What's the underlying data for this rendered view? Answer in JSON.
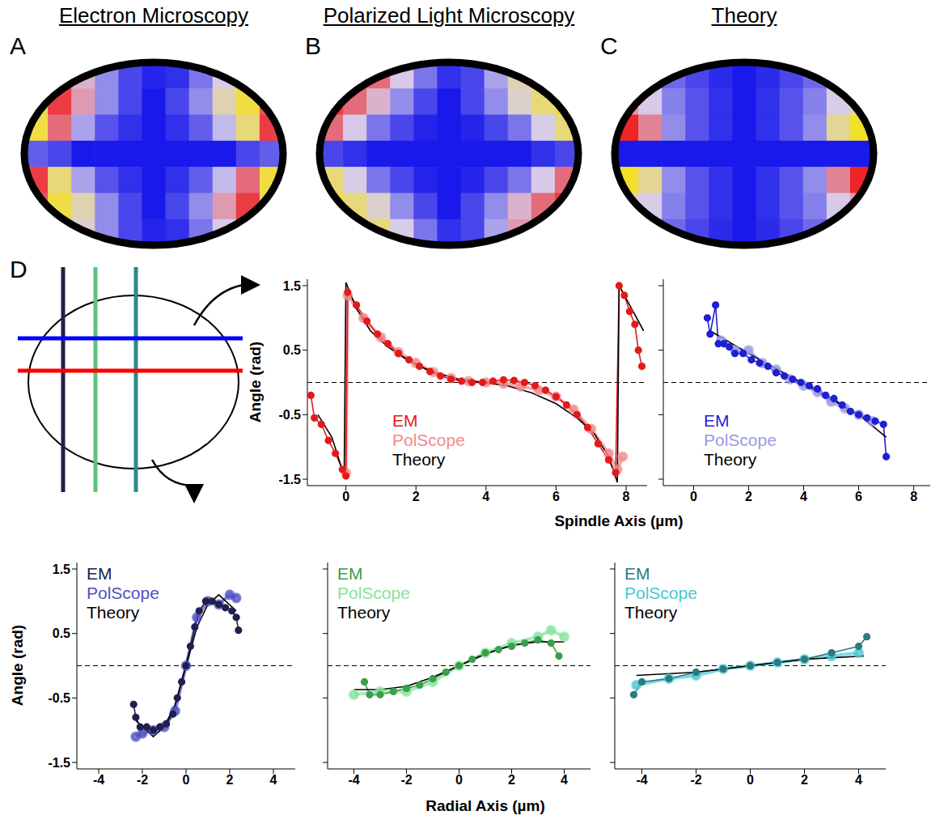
{
  "maps": [
    {
      "letter": "A",
      "title": "Electron Microscopy",
      "values": [
        [
          1.2,
          1.3,
          0.9,
          0.5,
          0.2,
          0.05,
          -0.1,
          -0.4,
          -0.8,
          -1.2,
          -1.3
        ],
        [
          -1.3,
          1.4,
          1.0,
          0.5,
          0.2,
          0,
          -0.2,
          -0.5,
          -1.0,
          -1.4,
          1.3
        ],
        [
          -1.4,
          1.2,
          0.6,
          0.25,
          0.1,
          0,
          -0.1,
          -0.3,
          -0.7,
          -1.2,
          1.4
        ],
        [
          0.3,
          0.2,
          0,
          0,
          0,
          0,
          0,
          0,
          0,
          -0.2,
          -0.3
        ],
        [
          1.4,
          -1.2,
          -0.6,
          -0.25,
          -0.1,
          0,
          0.1,
          0.3,
          0.7,
          1.2,
          -1.4
        ],
        [
          1.3,
          -1.4,
          -1.0,
          -0.5,
          -0.2,
          0,
          0.2,
          0.5,
          1.0,
          1.4,
          -1.3
        ],
        [
          -1.2,
          -1.3,
          -0.9,
          -0.5,
          -0.2,
          -0.05,
          0.1,
          0.4,
          0.8,
          1.2,
          1.3
        ]
      ]
    },
    {
      "letter": "B",
      "title": "Polarized Light Microscopy",
      "values": [
        [
          1.3,
          1.4,
          1.2,
          0.8,
          0.4,
          0.1,
          -0.2,
          -0.6,
          -1.0,
          -1.3,
          -1.4
        ],
        [
          1.4,
          1.2,
          0.9,
          0.5,
          0.2,
          0,
          -0.2,
          -0.5,
          -0.9,
          -1.2,
          -1.4
        ],
        [
          1.2,
          0.8,
          0.4,
          0.2,
          0.05,
          0,
          -0.05,
          -0.2,
          -0.4,
          -0.8,
          -1.2
        ],
        [
          0.2,
          0.1,
          0,
          0,
          0,
          0,
          0,
          0,
          0,
          -0.1,
          -0.2
        ],
        [
          -1.2,
          -0.8,
          -0.4,
          -0.2,
          -0.05,
          0,
          0.05,
          0.2,
          0.4,
          0.8,
          1.2
        ],
        [
          -1.4,
          -1.2,
          -0.9,
          -0.5,
          -0.2,
          0,
          0.2,
          0.5,
          0.9,
          1.2,
          1.4
        ],
        [
          -1.3,
          -1.4,
          -1.2,
          -0.8,
          -0.4,
          -0.1,
          0.2,
          0.6,
          1.0,
          1.3,
          1.4
        ]
      ]
    },
    {
      "letter": "C",
      "title": "Theory",
      "values": [
        [
          0.6,
          0.5,
          0.35,
          0.2,
          0.08,
          0,
          -0.08,
          -0.2,
          -0.35,
          -0.5,
          -0.6
        ],
        [
          1.0,
          0.8,
          0.45,
          0.25,
          0.1,
          0,
          -0.1,
          -0.25,
          -0.45,
          -0.8,
          -1.0
        ],
        [
          1.5,
          1.1,
          0.5,
          0.25,
          0.1,
          0,
          -0.1,
          -0.25,
          -0.5,
          -1.1,
          -1.5
        ],
        [
          0,
          0,
          0,
          0,
          0,
          0,
          0,
          0,
          0,
          0,
          0
        ],
        [
          -1.5,
          -1.1,
          -0.5,
          -0.25,
          -0.1,
          0,
          0.1,
          0.25,
          0.5,
          1.1,
          1.5
        ],
        [
          -1.0,
          -0.8,
          -0.45,
          -0.25,
          -0.1,
          0,
          0.1,
          0.25,
          0.45,
          0.8,
          1.0
        ],
        [
          -0.6,
          -0.5,
          -0.35,
          -0.2,
          -0.08,
          0,
          0.08,
          0.2,
          0.35,
          0.5,
          0.6
        ]
      ]
    }
  ],
  "clim": [
    -1.57,
    1.57
  ],
  "diagram": {
    "letter": "D"
  },
  "chart_data": [
    {
      "type": "line",
      "ylabel": "Angle (rad)",
      "xlabel": "Spindle Axis (µm)",
      "xlim": [
        -1.1,
        8.6
      ],
      "ylim": [
        -1.6,
        1.6
      ],
      "xticks": [
        0,
        2,
        4,
        6,
        8
      ],
      "yticks": [
        -1.5,
        -0.5,
        0.5,
        1.5
      ],
      "reference_y": 0,
      "legend": "lower left",
      "series": [
        {
          "name": "EM",
          "color": "#e31a1c",
          "marker": "circle",
          "line_style": "solid",
          "x": [
            -1,
            -0.9,
            -0.7,
            -0.5,
            -0.3,
            -0.1,
            0,
            0.05,
            0.3,
            0.6,
            0.9,
            1.2,
            1.5,
            1.8,
            2.1,
            2.4,
            2.7,
            3,
            3.3,
            3.6,
            3.9,
            4.2,
            4.5,
            4.8,
            5.1,
            5.4,
            5.7,
            6,
            6.3,
            6.6,
            6.9,
            7.2,
            7.5,
            7.7,
            7.8,
            7.95,
            8.1,
            8.25,
            8.35,
            8.45
          ],
          "values": [
            -0.2,
            -0.55,
            -0.65,
            -0.9,
            -1.1,
            -1.35,
            -1.45,
            1.4,
            1.2,
            0.95,
            0.75,
            0.6,
            0.45,
            0.35,
            0.25,
            0.17,
            0.1,
            0.05,
            0.02,
            0,
            0,
            0.02,
            0.04,
            0.03,
            0,
            -0.05,
            -0.12,
            -0.22,
            -0.35,
            -0.5,
            -0.7,
            -0.95,
            -1.2,
            -1.4,
            1.5,
            1.35,
            1.1,
            0.9,
            0.5,
            0.25
          ]
        },
        {
          "name": "PolScope",
          "color": "#f4898b",
          "marker": "circle",
          "line_style": "solid",
          "x": [
            0,
            0.05,
            0.5,
            1,
            1.5,
            2,
            2.5,
            3,
            3.5,
            4,
            4.5,
            5,
            5.5,
            6,
            6.5,
            7,
            7.5,
            7.75,
            7.9
          ],
          "values": [
            -1.4,
            1.35,
            1.0,
            0.7,
            0.47,
            0.3,
            0.16,
            0.07,
            0.02,
            0,
            -0.02,
            -0.06,
            -0.12,
            -0.22,
            -0.42,
            -0.72,
            -1.1,
            -1.35,
            -1.15
          ]
        },
        {
          "name": "Theory",
          "color": "#000000",
          "marker": "none",
          "line_style": "solid",
          "x": [
            -0.8,
            -0.4,
            -0.05,
            0,
            0.3,
            0.7,
            1.2,
            1.8,
            2.5,
            3.2,
            3.9,
            4.6,
            5.3,
            6,
            6.6,
            7.1,
            7.5,
            7.75,
            7.8,
            8.1,
            8.5
          ],
          "values": [
            -0.5,
            -0.85,
            -1.45,
            1.55,
            1.15,
            0.8,
            0.55,
            0.33,
            0.16,
            0.05,
            0,
            -0.05,
            -0.16,
            -0.33,
            -0.55,
            -0.8,
            -1.15,
            -1.55,
            1.5,
            1.2,
            0.8
          ]
        }
      ]
    },
    {
      "type": "line",
      "xlim": [
        -1.1,
        8.6
      ],
      "ylim": [
        -1.6,
        1.6
      ],
      "xticks": [
        0,
        2,
        4,
        6,
        8
      ],
      "yticks": [
        -1.5,
        -0.5,
        0.5,
        1.5
      ],
      "tick_labels": "x",
      "reference_y": 0,
      "legend": "lower left",
      "series": [
        {
          "name": "EM",
          "color": "#1f1fd6",
          "marker": "circle",
          "line_style": "solid",
          "x": [
            0.5,
            0.6,
            0.8,
            0.9,
            1.1,
            1.3,
            1.5,
            1.8,
            2.1,
            2.4,
            2.7,
            3,
            3.3,
            3.6,
            3.9,
            4.2,
            4.5,
            4.8,
            5.1,
            5.4,
            5.7,
            6,
            6.3,
            6.6,
            6.9,
            7
          ],
          "values": [
            1.0,
            0.75,
            1.2,
            0.6,
            0.6,
            0.55,
            0.45,
            0.45,
            0.35,
            0.3,
            0.25,
            0.15,
            0.1,
            0.05,
            0,
            -0.05,
            -0.1,
            -0.2,
            -0.25,
            -0.35,
            -0.45,
            -0.5,
            -0.55,
            -0.6,
            -0.65,
            -1.15
          ]
        },
        {
          "name": "PolScope",
          "color": "#9a9ae6",
          "marker": "circle",
          "line_style": "solid",
          "x": [
            1,
            1.5,
            2,
            2.5,
            3,
            3.5,
            4,
            4.5,
            5,
            5.5,
            6,
            6.5
          ],
          "values": [
            0.65,
            0.5,
            0.5,
            0.3,
            0.2,
            0.05,
            -0.05,
            -0.15,
            -0.3,
            -0.4,
            -0.5,
            -0.6
          ]
        },
        {
          "name": "Theory",
          "color": "#000000",
          "marker": "none",
          "line_style": "solid",
          "x": [
            0.6,
            2,
            4,
            6,
            7
          ],
          "values": [
            0.8,
            0.45,
            -0.02,
            -0.5,
            -0.85
          ]
        }
      ]
    },
    {
      "type": "line",
      "ylabel": "Angle (rad)",
      "xlim": [
        -5,
        5
      ],
      "ylim": [
        -1.6,
        1.6
      ],
      "xticks": [
        -4,
        -2,
        0,
        2,
        4
      ],
      "yticks": [
        -1.5,
        -0.5,
        0.5,
        1.5
      ],
      "reference_y": 0,
      "legend": "upper left",
      "series": [
        {
          "name": "EM",
          "color": "#20204e",
          "marker": "circle",
          "line_style": "solid",
          "x": [
            -2.4,
            -2.3,
            -2.1,
            -1.8,
            -1.5,
            -1.2,
            -0.9,
            -0.6,
            -0.4,
            -0.2,
            0,
            0.2,
            0.4,
            0.6,
            0.9,
            1.2,
            1.5,
            1.8,
            2.1,
            2.3,
            2.4
          ],
          "values": [
            -0.6,
            -0.8,
            -0.95,
            -0.95,
            -1.0,
            -0.95,
            -0.9,
            -0.75,
            -0.5,
            -0.25,
            0,
            0.3,
            0.6,
            0.85,
            1.0,
            1.0,
            0.95,
            0.9,
            0.85,
            0.75,
            0.55
          ]
        },
        {
          "name": "PolScope",
          "color": "#5050c8",
          "marker": "circle",
          "line_style": "solid",
          "x": [
            -2.3,
            -2,
            -1.5,
            -1,
            -0.5,
            0,
            0.5,
            1,
            1.5,
            2,
            2.3
          ],
          "values": [
            -1.1,
            -1.05,
            -1.0,
            -0.95,
            -0.7,
            0,
            0.75,
            1.0,
            0.95,
            1.1,
            1.05
          ]
        },
        {
          "name": "Theory",
          "color": "#000000",
          "marker": "none",
          "line_style": "solid",
          "x": [
            -2.3,
            -1.5,
            -1,
            -0.5,
            0,
            0.5,
            1,
            1.5,
            2.3
          ],
          "values": [
            -0.85,
            -1.1,
            -0.95,
            -0.6,
            0,
            0.6,
            0.95,
            1.1,
            0.85
          ]
        }
      ]
    },
    {
      "type": "line",
      "xlabel": "Radial Axis (µm)",
      "xlim": [
        -5,
        5
      ],
      "ylim": [
        -1.6,
        1.6
      ],
      "xticks": [
        -4,
        -2,
        0,
        2,
        4
      ],
      "yticks": [
        -1.5,
        -0.5,
        0.5,
        1.5
      ],
      "tick_labels": "x",
      "reference_y": 0,
      "legend": "upper left",
      "series": [
        {
          "name": "EM",
          "color": "#3c9f4c",
          "marker": "circle",
          "line_style": "solid",
          "x": [
            -3.6,
            -3.4,
            -3,
            -2.5,
            -2,
            -1.5,
            -1,
            -0.5,
            0,
            0.5,
            1,
            1.5,
            2,
            2.5,
            3,
            3.5,
            3.8
          ],
          "values": [
            -0.25,
            -0.45,
            -0.45,
            -0.4,
            -0.35,
            -0.3,
            -0.2,
            -0.1,
            0,
            0.1,
            0.2,
            0.25,
            0.3,
            0.35,
            0.4,
            0.35,
            0.15
          ]
        },
        {
          "name": "PolScope",
          "color": "#86e39c",
          "marker": "circle",
          "line_style": "solid",
          "x": [
            -4,
            -3,
            -2,
            -1,
            0,
            1,
            2,
            3,
            3.5,
            4
          ],
          "values": [
            -0.45,
            -0.4,
            -0.4,
            -0.25,
            0,
            0.2,
            0.35,
            0.45,
            0.55,
            0.45
          ]
        },
        {
          "name": "Theory",
          "color": "#000000",
          "marker": "none",
          "line_style": "solid",
          "x": [
            -4,
            -3,
            -2,
            -1,
            0,
            1,
            2,
            3,
            4
          ],
          "values": [
            -0.37,
            -0.37,
            -0.32,
            -0.18,
            0,
            0.18,
            0.32,
            0.37,
            0.37
          ]
        }
      ]
    },
    {
      "type": "line",
      "xlim": [
        -5,
        5
      ],
      "ylim": [
        -1.6,
        1.6
      ],
      "xticks": [
        -4,
        -2,
        0,
        2,
        4
      ],
      "yticks": [
        -1.5,
        -0.5,
        0.5,
        1.5
      ],
      "tick_labels": "x",
      "reference_y": 0,
      "legend": "upper left",
      "series": [
        {
          "name": "EM",
          "color": "#2b7b80",
          "marker": "circle",
          "line_style": "solid",
          "x": [
            -4.3,
            -4,
            -3,
            -2,
            -1,
            0,
            1,
            2,
            3,
            4,
            4.3
          ],
          "values": [
            -0.45,
            -0.25,
            -0.2,
            -0.1,
            -0.05,
            0,
            0.05,
            0.1,
            0.2,
            0.3,
            0.45
          ]
        },
        {
          "name": "PolScope",
          "color": "#48c9d2",
          "marker": "circle",
          "line_style": "solid",
          "x": [
            -4.2,
            -3,
            -2,
            -1,
            0,
            1,
            2,
            3,
            4
          ],
          "values": [
            -0.3,
            -0.2,
            -0.15,
            -0.05,
            0,
            0.05,
            0.1,
            0.15,
            0.2
          ]
        },
        {
          "name": "Theory",
          "color": "#000000",
          "marker": "none",
          "line_style": "solid",
          "x": [
            -4.2,
            -2,
            0,
            2,
            4.2
          ],
          "values": [
            -0.15,
            -0.1,
            0,
            0.1,
            0.15
          ]
        }
      ]
    }
  ]
}
